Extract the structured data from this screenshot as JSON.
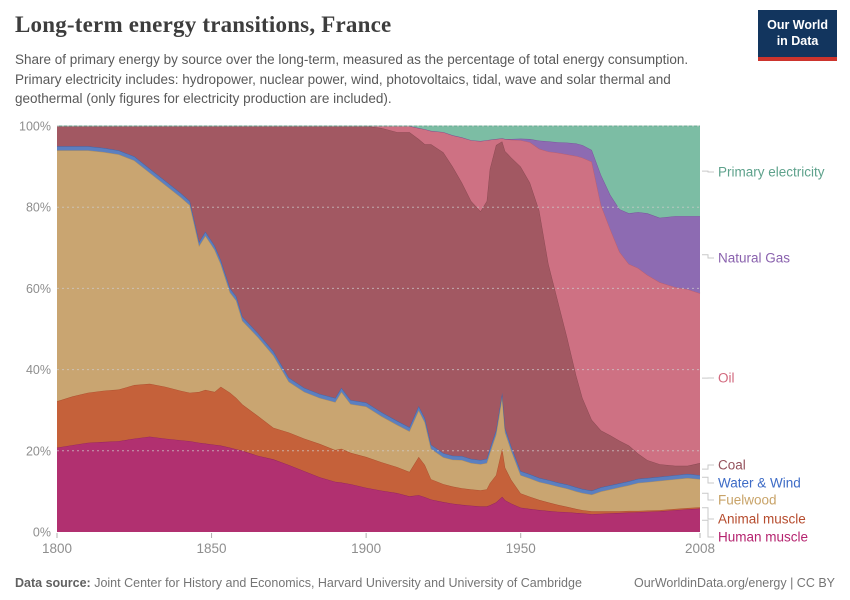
{
  "header": {
    "title": "Long-term energy transitions, France",
    "subtitle": "Share of primary energy by source over the long-term, measured as the percentage of total energy consumption. Primary electricity includes: hydropower, nuclear power, wind, photovoltaics, tidal, wave and solar thermal and geothermal (only figures for electricity production are included).",
    "logo": {
      "line1": "Our World",
      "line2": "in Data"
    }
  },
  "footer": {
    "source_label": "Data source:",
    "source_text": " Joint Center for History and Economics, Harvard University and University of Cambridge",
    "link_text": "OurWorldinData.org/energy | CC BY"
  },
  "chart_data": {
    "type": "area",
    "stacked": true,
    "normalized_percent": true,
    "title": "Long-term energy transitions, France",
    "xlabel": "",
    "ylabel": "",
    "unit": "%",
    "ylim": [
      0,
      100
    ],
    "grid": "dashed horizontal",
    "legend_position": "right",
    "yticks": [
      {
        "value": 100,
        "label": "100%"
      },
      {
        "value": 80,
        "label": "80%"
      },
      {
        "value": 60,
        "label": "60%"
      },
      {
        "value": 40,
        "label": "40%"
      },
      {
        "value": 20,
        "label": "20%"
      },
      {
        "value": 0,
        "label": "0%"
      }
    ],
    "xticks": [
      {
        "value": 1800,
        "label": "1800"
      },
      {
        "value": 1850,
        "label": "1850"
      },
      {
        "value": 1900,
        "label": "1900"
      },
      {
        "value": 1950,
        "label": "1950"
      },
      {
        "value": 2008,
        "label": "2008"
      }
    ],
    "x": [
      1800,
      1805,
      1810,
      1815,
      1820,
      1825,
      1830,
      1835,
      1840,
      1843,
      1846,
      1848,
      1851,
      1853,
      1856,
      1858,
      1860,
      1865,
      1870,
      1875,
      1880,
      1885,
      1890,
      1892,
      1895,
      1900,
      1905,
      1910,
      1914,
      1917,
      1919,
      1921,
      1925,
      1928,
      1931,
      1934,
      1937,
      1939,
      1940,
      1942,
      1944,
      1945,
      1947,
      1950,
      1953,
      1956,
      1959,
      1962,
      1965,
      1968,
      1970,
      1973,
      1976,
      1979,
      1982,
      1985,
      1988,
      1991,
      1995,
      2000,
      2004,
      2008
    ],
    "series": [
      {
        "name": "Human muscle",
        "color": "#b13070",
        "stroke": "#8e2459",
        "label_color": "#b5236f",
        "values": [
          20.8,
          21.4,
          22,
          22.2,
          22.4,
          23,
          23.5,
          23,
          22.6,
          22.4,
          22,
          21.8,
          21.5,
          21.3,
          20.8,
          20.4,
          20,
          18.8,
          17.9,
          16.5,
          15,
          13.5,
          12.4,
          12.2,
          11.8,
          10.9,
          10.2,
          9.6,
          8.8,
          9.1,
          8.6,
          8,
          7.4,
          7,
          6.7,
          6.5,
          6.3,
          6.3,
          6.6,
          7.3,
          8.7,
          7.8,
          7,
          6,
          5.7,
          5.4,
          5.2,
          5,
          4.9,
          4.7,
          4.6,
          4.4,
          4.5,
          4.6,
          4.7,
          4.8,
          4.9,
          5,
          5.1,
          5.4,
          5.6,
          5.8
        ]
      },
      {
        "name": "Animal muscle",
        "color": "#c5613a",
        "stroke": "#a84e2c",
        "label_color": "#b64c2e",
        "values": [
          11.4,
          12,
          12.3,
          12.6,
          12.7,
          13.2,
          13,
          12.8,
          12.2,
          11.9,
          12.5,
          13.2,
          13,
          14.5,
          13.5,
          12.6,
          11.4,
          9.8,
          7.8,
          8,
          8,
          8.2,
          7.8,
          8.3,
          7.7,
          7.6,
          7,
          6.4,
          6,
          9.4,
          7.9,
          5,
          4.4,
          4.2,
          4.1,
          4,
          4,
          4.2,
          5.4,
          6.7,
          11.9,
          8,
          5.8,
          3.5,
          3,
          2.5,
          2.1,
          1.7,
          1.3,
          1,
          0.8,
          0.7,
          0.6,
          0.5,
          0.4,
          0.4,
          0.3,
          0.3,
          0.3,
          0.3,
          0.3,
          0.3
        ]
      },
      {
        "name": "Fuelwood",
        "color": "#c9a571",
        "stroke": "#b08a52",
        "label_color": "#c8a368",
        "values": [
          61.8,
          60.6,
          59.7,
          58.8,
          57.9,
          55.3,
          52,
          49.7,
          47.7,
          46.2,
          36,
          38,
          35,
          30.2,
          24.7,
          24,
          20.6,
          19.4,
          17.8,
          12.5,
          11.5,
          11.3,
          11.8,
          14,
          12,
          12.4,
          11.3,
          10.4,
          10,
          11.5,
          10.5,
          7.5,
          6.6,
          6.6,
          6.9,
          6.5,
          6.4,
          6.5,
          7.4,
          10,
          12.7,
          8.7,
          7.2,
          4.5,
          4.5,
          4.4,
          4.5,
          4.5,
          4.5,
          4.3,
          4.2,
          4.1,
          4.9,
          5.4,
          5.9,
          6.3,
          6.9,
          7,
          7.2,
          7.3,
          7.4,
          6.9
        ]
      },
      {
        "name": "Water & Wind",
        "color": "#5b7fc0",
        "stroke": "#3c5fa5",
        "label_color": "#3d6bc6",
        "values": [
          1,
          1,
          1,
          1,
          1,
          1,
          1,
          1,
          1,
          1,
          1,
          1,
          1,
          1,
          1,
          1,
          1,
          1,
          1,
          1,
          1,
          1,
          1,
          1,
          1,
          1,
          1,
          1,
          1,
          1,
          1,
          1,
          1,
          1,
          1,
          1,
          1,
          1,
          1,
          1,
          1,
          1,
          1,
          1,
          1,
          1,
          1,
          1,
          1,
          1,
          1,
          1,
          1,
          1,
          1,
          1,
          1,
          1,
          1,
          1,
          1,
          1
        ]
      },
      {
        "name": "Coal",
        "color": "#a25862",
        "stroke": "#87454f",
        "label_color": "#94525c",
        "values": [
          5,
          5,
          5,
          5.4,
          6,
          7.5,
          10.5,
          13.5,
          16.5,
          18.5,
          28.5,
          26,
          29.5,
          33,
          40,
          42,
          47,
          51,
          55.5,
          62,
          64.5,
          66,
          67,
          64.5,
          67.5,
          68.1,
          70,
          71.1,
          72.7,
          65.8,
          67.5,
          74,
          74.1,
          71.2,
          67.3,
          63.5,
          61.3,
          63.5,
          68.8,
          70.3,
          61.9,
          68.2,
          71.2,
          75,
          71.8,
          65.7,
          53.2,
          44.8,
          36.3,
          27.5,
          22.4,
          17.4,
          14,
          12.3,
          10.5,
          8.8,
          6.2,
          4.4,
          3.1,
          2.3,
          2,
          3
        ]
      },
      {
        "name": "Oil",
        "color": "#ce7183",
        "stroke": "#b55a6e",
        "label_color": "#d2697e",
        "values": [
          0,
          0,
          0,
          0,
          0,
          0,
          0,
          0,
          0,
          0,
          0,
          0,
          0,
          0,
          0,
          0,
          0,
          0,
          0,
          0,
          0,
          0,
          0,
          0,
          0,
          0,
          0.5,
          1.5,
          1.5,
          2.7,
          3.7,
          3.3,
          5,
          7.7,
          11.2,
          15,
          17.3,
          15,
          7.2,
          1.5,
          0.8,
          3,
          4.4,
          6.5,
          10,
          15.2,
          27.7,
          36.4,
          45,
          54.1,
          59.2,
          63.6,
          55.5,
          50.7,
          46.5,
          44.7,
          45.7,
          45.6,
          44.8,
          44,
          43.5,
          41.8
        ]
      },
      {
        "name": "Natural Gas",
        "color": "#8d6bb2",
        "stroke": "#745097",
        "label_color": "#8a62ae",
        "values": [
          0,
          0,
          0,
          0,
          0,
          0,
          0,
          0,
          0,
          0,
          0,
          0,
          0,
          0,
          0,
          0,
          0,
          0,
          0,
          0,
          0,
          0,
          0,
          0,
          0,
          0,
          0,
          0,
          0,
          0,
          0,
          0,
          0,
          0,
          0,
          0,
          0,
          0,
          0,
          0,
          0,
          0,
          0.2,
          0.4,
          0.8,
          2,
          2.5,
          2.6,
          2.9,
          3.1,
          3.1,
          2.9,
          7.4,
          8.5,
          10.5,
          12.5,
          13.8,
          15.2,
          15.9,
          17.5,
          18,
          19
        ]
      },
      {
        "name": "Primary electricity",
        "color": "#7cbda4",
        "stroke": "#5fa88c",
        "label_color": "#5ea28c",
        "values": [
          0,
          0,
          0,
          0,
          0,
          0,
          0,
          0,
          0,
          0,
          0,
          0,
          0,
          0,
          0,
          0,
          0,
          0,
          0,
          0,
          0,
          0,
          0,
          0,
          0,
          0,
          0,
          0,
          0,
          0.5,
          0.8,
          1.2,
          1.5,
          2.3,
          2.8,
          3.5,
          3.7,
          3.5,
          3.4,
          3.2,
          3,
          3.2,
          3.2,
          3.1,
          3.2,
          3.6,
          3.8,
          4,
          4.1,
          4.3,
          4.7,
          5.9,
          12.1,
          17,
          20.5,
          21.5,
          21.2,
          21.5,
          22.6,
          22.2,
          22.2,
          22.2
        ]
      }
    ]
  }
}
